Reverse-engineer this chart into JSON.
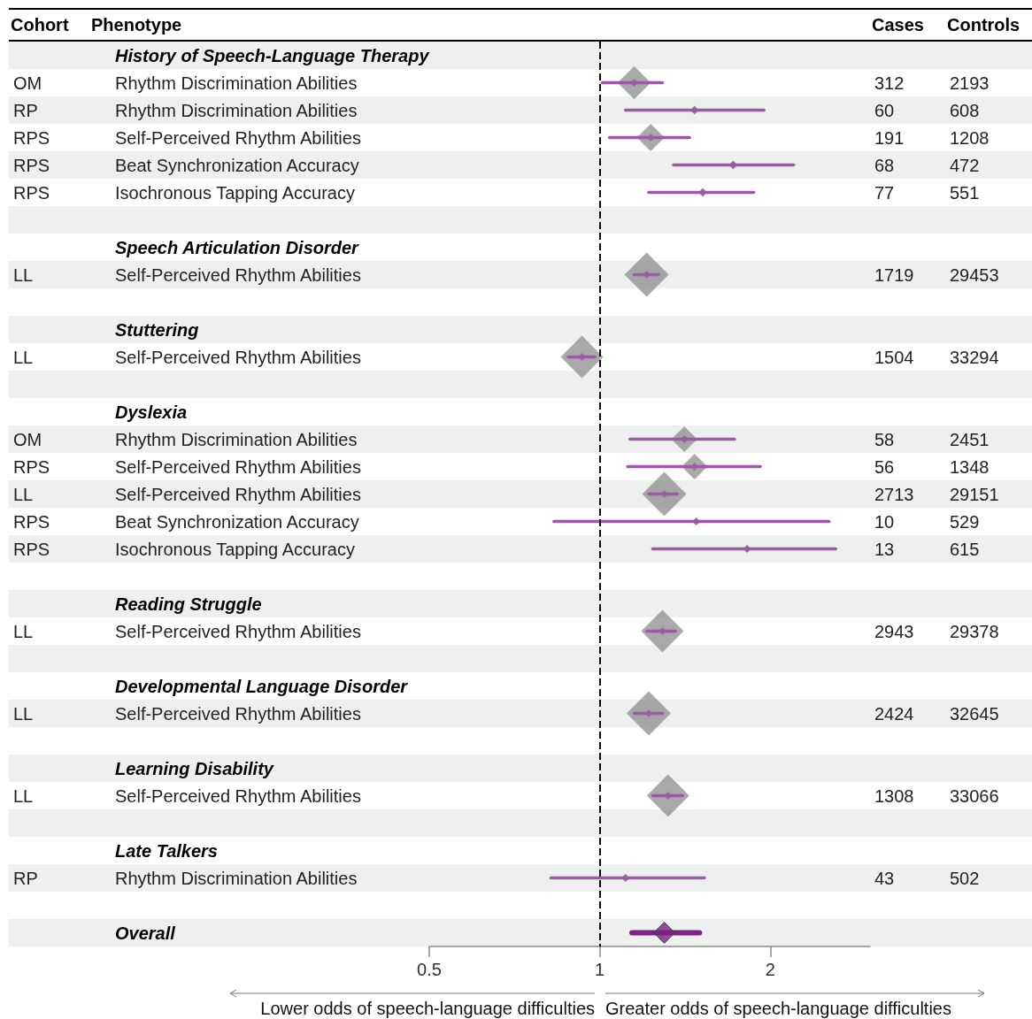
{
  "chart_data": {
    "type": "scatter",
    "orientation": "horizontal",
    "log": "x",
    "marker": "diamond",
    "categories": [
      "History of Speech-Language Therapy",
      "Rhythm Discrimination Abilities",
      "Rhythm Discrimination Abilities",
      "Self-Perceived Rhythm Abilities",
      "Beat Synchronization Accuracy",
      "Isochronous Tapping Accuracy",
      null,
      "Speech Articulation Disorder",
      "Self-Perceived Rhythm Abilities",
      null,
      "Stuttering",
      "Self-Perceived Rhythm Abilities",
      null,
      "Dyslexia",
      "Rhythm Discrimination Abilities",
      "Self-Perceived Rhythm Abilities",
      "Self-Perceived Rhythm Abilities",
      "Beat Synchronization Accuracy",
      "Isochronous Tapping Accuracy",
      null,
      "Reading Struggle",
      "Self-Perceived Rhythm Abilities",
      null,
      "Developmental Language Disorder",
      "Self-Perceived Rhythm Abilities",
      null,
      "Learning Disability",
      "Self-Perceived Rhythm Abilities",
      null,
      "Late Talkers",
      "Rhythm Discrimination Abilities",
      null,
      "Overall"
    ],
    "y_categories": [
      null,
      "OM",
      "RP",
      "RPS",
      "RPS",
      "RPS",
      null,
      null,
      "LL",
      null,
      null,
      "LL",
      null,
      null,
      "OM",
      "RPS",
      "LL",
      "RPS",
      "RPS",
      null,
      null,
      "LL",
      null,
      null,
      "LL",
      null,
      null,
      "LL",
      null,
      null,
      "RP",
      null,
      null
    ],
    "cell_labels": [
      null,
      [
        "312",
        "2193"
      ],
      [
        "60",
        "608"
      ],
      [
        "191",
        "1208"
      ],
      [
        "68",
        "472"
      ],
      [
        "77",
        "551"
      ],
      null,
      null,
      [
        "1719",
        "29453"
      ],
      null,
      null,
      [
        "1504",
        "33294"
      ],
      null,
      null,
      [
        "58",
        "2451"
      ],
      [
        "56",
        "1348"
      ],
      [
        "2713",
        "29151"
      ],
      [
        "10",
        "529"
      ],
      [
        "13",
        "615"
      ],
      null,
      null,
      [
        "2943",
        "29378"
      ],
      null,
      null,
      [
        "2424",
        "32645"
      ],
      null,
      null,
      [
        "1308",
        "33066"
      ],
      null,
      null,
      [
        "43",
        "502"
      ],
      null,
      null
    ],
    "series": [
      {
        "type": "bubble",
        "color": "#8c8c8c",
        "values": [
          null,
          1.15,
          1.47,
          1.23,
          1.72,
          1.52,
          null,
          null,
          1.21,
          null,
          null,
          0.93,
          null,
          null,
          1.41,
          1.47,
          1.3,
          1.48,
          1.82,
          null,
          null,
          1.29,
          null,
          null,
          1.22,
          null,
          null,
          1.32,
          null,
          null,
          1.11,
          null,
          null
        ],
        "sizes": [
          null,
          0.56,
          0.04,
          0.39,
          0.04,
          0.04,
          null,
          null,
          1,
          null,
          null,
          0.92,
          null,
          null,
          0.34,
          0.34,
          1,
          0.03,
          0.03,
          null,
          null,
          0.92,
          null,
          null,
          1,
          null,
          null,
          0.92,
          null,
          null,
          0.03,
          null,
          null
        ]
      },
      {
        "color": "#9b59a6",
        "values": [
          null,
          1.15,
          1.47,
          1.23,
          1.72,
          1.52,
          null,
          null,
          1.21,
          null,
          null,
          0.93,
          null,
          null,
          1.41,
          1.47,
          1.3,
          1.48,
          1.82,
          null,
          null,
          1.29,
          null,
          null,
          1.22,
          null,
          null,
          1.32,
          null,
          null,
          1.11,
          null,
          null
        ],
        "errors": [
          null,
          [
            1.01,
            1.29
          ],
          [
            1.11,
            1.95
          ],
          [
            1.04,
            1.44
          ],
          [
            1.35,
            2.2
          ],
          [
            1.22,
            1.87
          ],
          null,
          null,
          [
            1.15,
            1.27
          ],
          null,
          null,
          [
            0.88,
            0.98
          ],
          null,
          null,
          [
            1.13,
            1.73
          ],
          [
            1.12,
            1.92
          ],
          [
            1.22,
            1.37
          ],
          [
            0.83,
            2.54
          ],
          [
            1.24,
            2.61
          ],
          null,
          null,
          [
            1.21,
            1.36
          ],
          null,
          null,
          [
            1.15,
            1.29
          ],
          null,
          null,
          [
            1.24,
            1.4
          ],
          null,
          null,
          [
            0.82,
            1.53
          ],
          null,
          null
        ]
      },
      {
        "color": "#7b2383",
        "values": [
          null,
          null,
          null,
          null,
          null,
          null,
          null,
          null,
          null,
          null,
          null,
          null,
          null,
          null,
          null,
          null,
          null,
          null,
          null,
          null,
          null,
          null,
          null,
          null,
          null,
          null,
          null,
          null,
          null,
          null,
          null,
          null,
          1.3
        ],
        "errors": [
          null,
          null,
          null,
          null,
          null,
          null,
          null,
          null,
          null,
          null,
          null,
          null,
          null,
          null,
          null,
          null,
          null,
          null,
          null,
          null,
          null,
          null,
          null,
          null,
          null,
          null,
          null,
          null,
          null,
          null,
          null,
          null,
          [
            1.14,
            1.5
          ]
        ]
      }
    ],
    "xlim": [
      0.5,
      3
    ],
    "xticks": [
      0.5,
      1,
      2
    ],
    "ref_lines": [
      {
        "axis": "x",
        "value": 1,
        "line_style": "dashed",
        "color": "#000000"
      }
    ],
    "annotations": [
      "Cohort",
      "Phenotype",
      "Cases",
      "Controls",
      "Lower odds of speech-language difficulties",
      "Greater odds of speech-language difficulties"
    ]
  }
}
